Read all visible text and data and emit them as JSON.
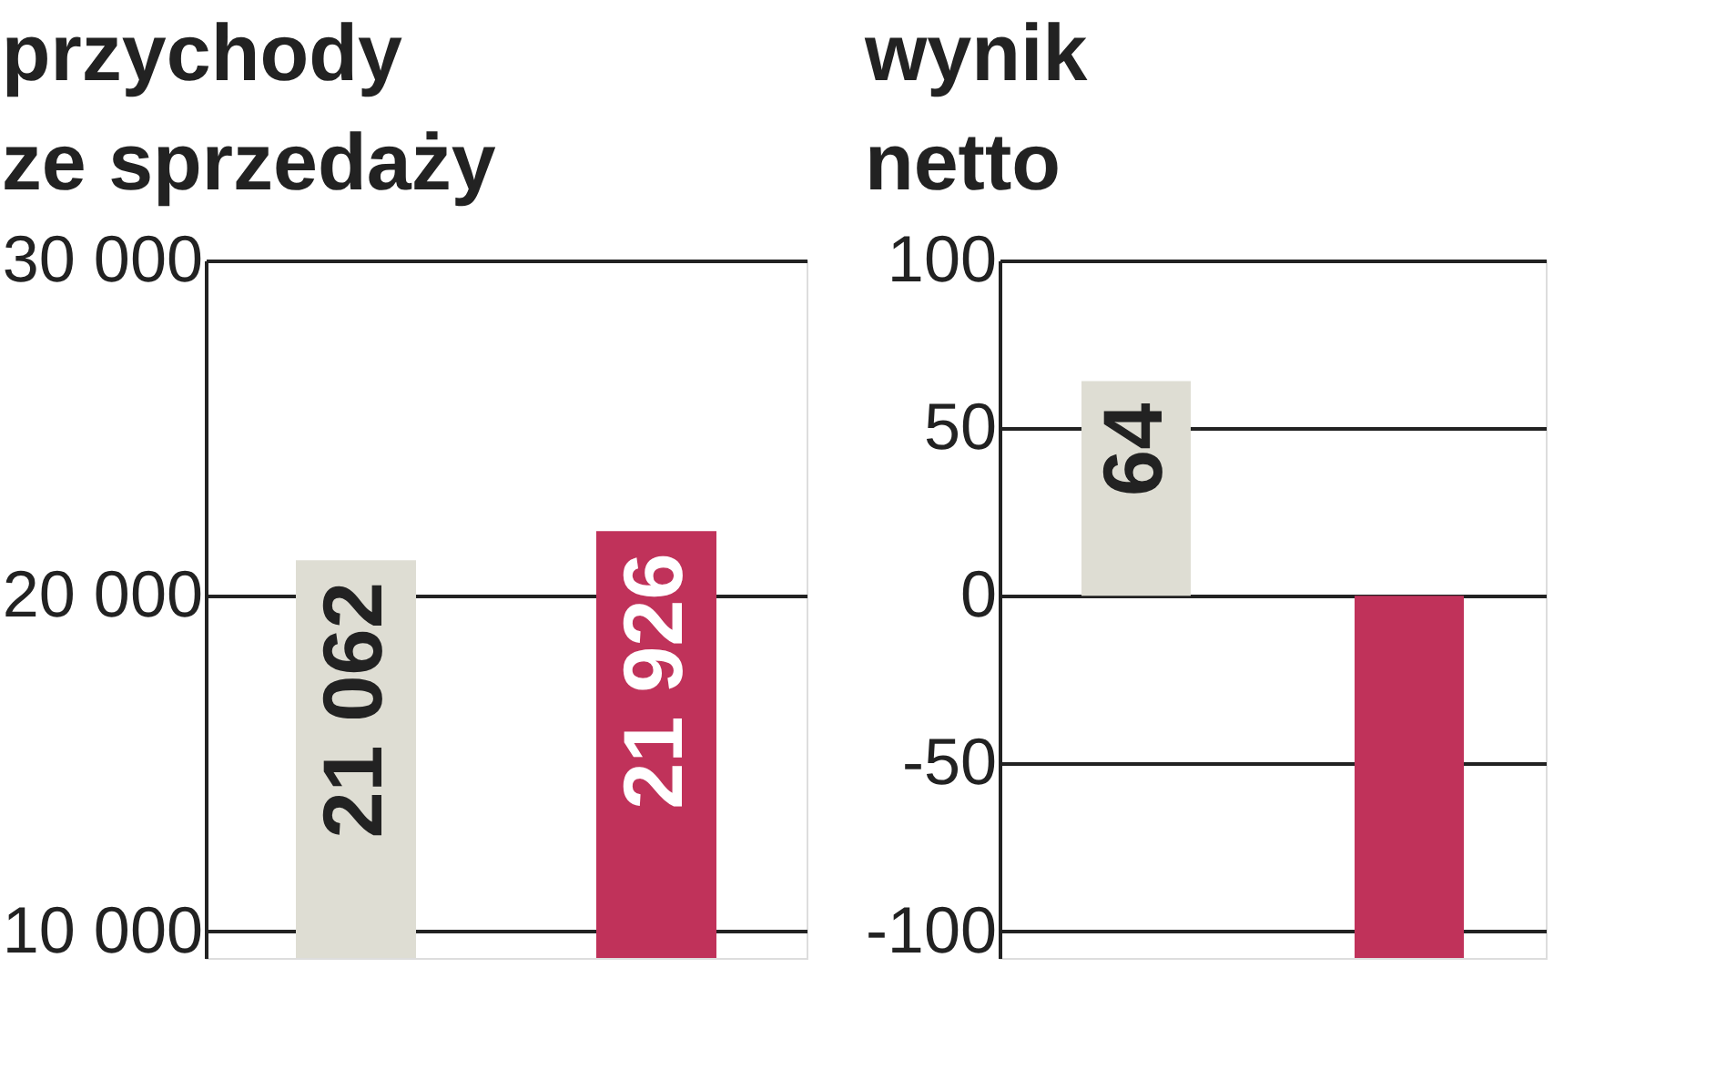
{
  "chart_data": [
    {
      "type": "bar",
      "title": [
        "przychody",
        "ze sprzedaży"
      ],
      "categories": [
        null,
        null
      ],
      "values": [
        21062,
        21926
      ],
      "colors": [
        "#deddd3",
        "#c0325a"
      ],
      "value_labels": [
        "21 062",
        "21 926"
      ],
      "ylim": [
        9200,
        30000
      ],
      "yticks": [
        {
          "value": 10000,
          "label": "10 000"
        },
        {
          "value": 20000,
          "label": "20 000"
        },
        {
          "value": 30000,
          "label": "30 000"
        }
      ],
      "grid": "y",
      "tick_labels": "y"
    },
    {
      "type": "bar",
      "title": [
        "wynik",
        "netto"
      ],
      "categories": [
        null,
        null
      ],
      "values": [
        64,
        -108
      ],
      "colors": [
        "#deddd3",
        "#c0325a"
      ],
      "value_labels": [
        "64",
        null
      ],
      "ylim": [
        -108,
        100
      ],
      "yticks": [
        -100,
        -50,
        0,
        50,
        100
      ],
      "grid": "y",
      "tick_labels": "y"
    }
  ]
}
